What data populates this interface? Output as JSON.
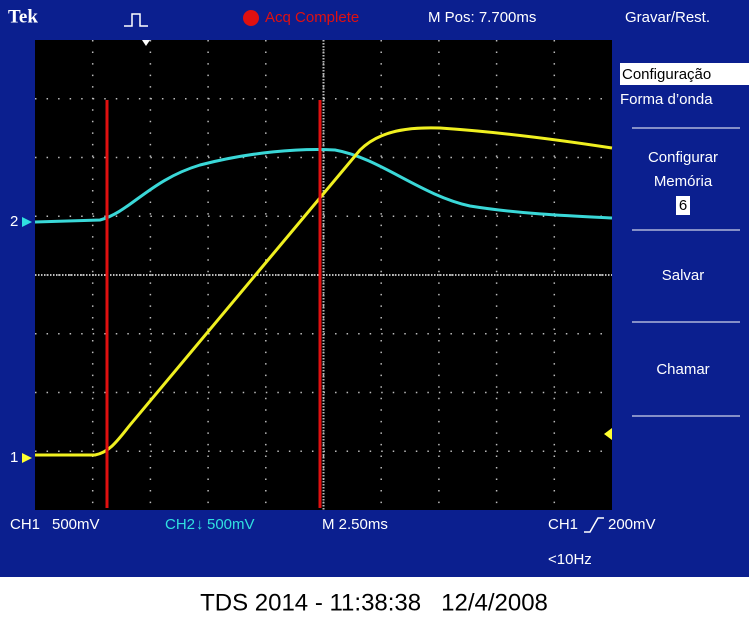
{
  "top_bar": {
    "brand": "Tek",
    "status": "Acq Complete",
    "position": "M Pos: 7.700ms"
  },
  "menu": {
    "title": "Gravar/Rest.",
    "setup": "Configuração",
    "waveform": "Forma d’onda",
    "configure": "Configurar",
    "memory": "Memória",
    "memory_slot": "6",
    "save": "Salvar",
    "recall": "Chamar"
  },
  "markers": {
    "ch1": "1",
    "ch2": "2"
  },
  "status_bar": {
    "ch1": "CH1",
    "ch1_scale": "500mV",
    "ch2": "CH2",
    "ch2_scale": "500mV",
    "timebase": "M 2.50ms",
    "trigger_source": "CH1",
    "trigger_level": "200mV",
    "frequency": "<10Hz"
  },
  "caption": "TDS 2014 - 11:38:38   12/4/2008"
}
